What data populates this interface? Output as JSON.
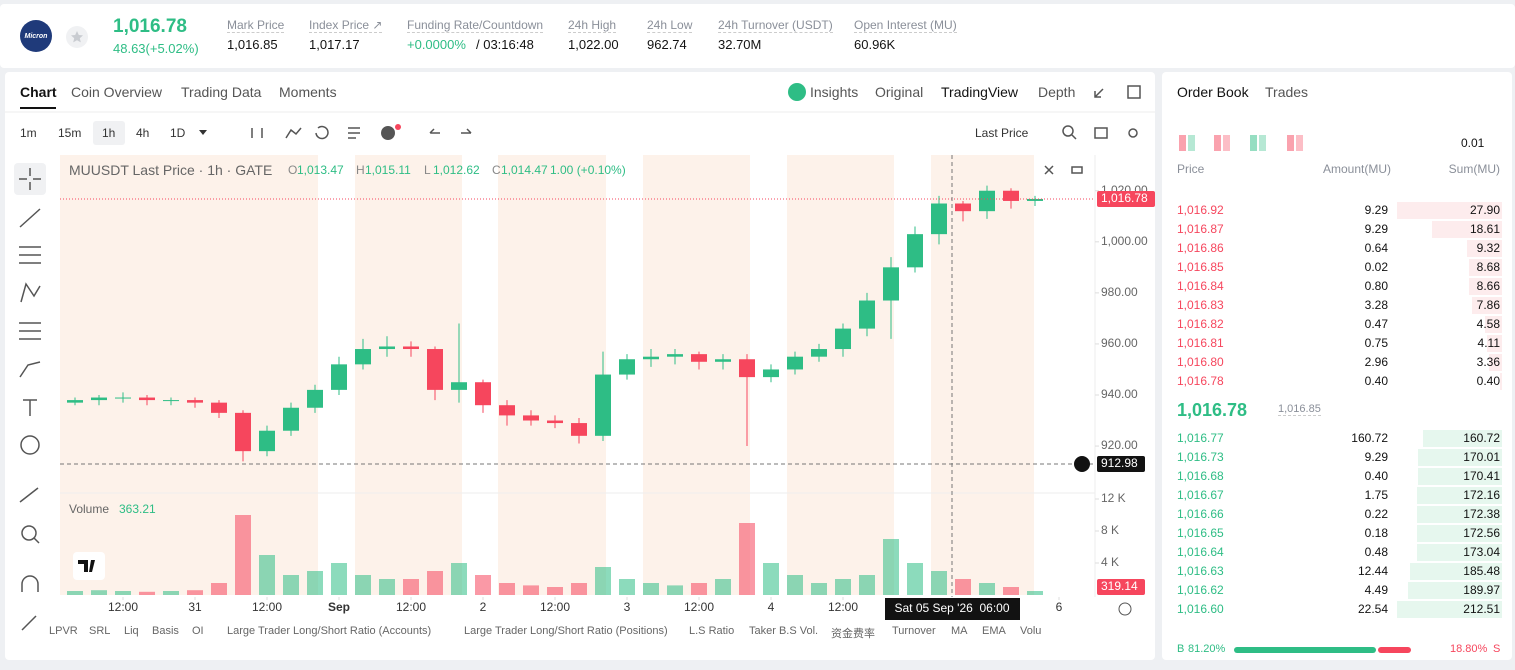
{
  "header": {
    "logo": "Micron",
    "price": "1,016.78",
    "change": "48.63(+5.02%)",
    "stats": [
      {
        "label": "Mark Price",
        "value": "1,016.85"
      },
      {
        "label": "Index Price ↗",
        "value": "1,017.17"
      },
      {
        "label": "Funding Rate/Countdown",
        "value": "+0.0000%",
        "value2": "/ 03:16:48"
      },
      {
        "label": "24h High",
        "value": "1,022.00"
      },
      {
        "label": "24h Low",
        "value": "962.74"
      },
      {
        "label": "24h Turnover (USDT)",
        "value": "32.70M"
      },
      {
        "label": "Open Interest (MU)",
        "value": "60.96K"
      }
    ]
  },
  "tabs": [
    "Chart",
    "Coin Overview",
    "Trading Data",
    "Moments"
  ],
  "view_tabs": [
    "Insights",
    "Original",
    "TradingView",
    "Depth"
  ],
  "intervals": [
    "1m",
    "15m",
    "1h",
    "4h",
    "1D"
  ],
  "price_source": "Last Price",
  "legend": {
    "symbol": "MUUSDT Last Price · 1h · GATE",
    "ohlc": [
      {
        "key": "O",
        "value": "1,013.47"
      },
      {
        "key": "H",
        "value": "1,015.11"
      },
      {
        "key": "L",
        "value": "1,012.62"
      },
      {
        "key": "C",
        "value": "1,014.47"
      }
    ],
    "change": "1.00 (+0.10%)"
  },
  "volume_legend": {
    "label": "Volume",
    "value": "363.21"
  },
  "price_labels": {
    "last": "1,016.78",
    "crosshair": "912.98",
    "crosshair_time": "Sat 05 Sep '26  06:00",
    "volume_last": "319.14"
  },
  "indicators": [
    "LPVR",
    "SRL",
    "Liq",
    "Basis",
    "OI",
    "Large Trader Long/Short Ratio (Accounts)",
    "Large Trader Long/Short Ratio (Positions)",
    "L.S Ratio",
    "Taker B.S Vol.",
    "资金费率",
    "Turnover",
    "MA",
    "EMA",
    "Volu"
  ],
  "chart_data": {
    "type": "candlestick",
    "x": [
      -8,
      -4,
      0,
      4,
      8,
      12,
      16,
      20,
      24,
      28,
      32,
      36,
      40,
      44,
      48,
      52,
      56,
      60,
      64,
      68,
      72,
      76,
      80,
      84,
      88,
      92,
      96,
      100,
      104,
      108,
      112,
      116,
      120,
      124,
      128,
      132,
      136,
      140,
      144,
      148,
      152
    ],
    "open": [
      937,
      938,
      939,
      939,
      938,
      938,
      937,
      933,
      918,
      926,
      935,
      942,
      952,
      958,
      959,
      958,
      942,
      945,
      936,
      932,
      930,
      929,
      924,
      948,
      954,
      955,
      956,
      953,
      954,
      947,
      950,
      955,
      958,
      966,
      977,
      990,
      1003,
      1015,
      1012,
      1020,
      1016
    ],
    "high": [
      939,
      940,
      941,
      940,
      939,
      939,
      938,
      934,
      928,
      937,
      944,
      955,
      962,
      963,
      961,
      959,
      968,
      946,
      938,
      934,
      932,
      931,
      957,
      956,
      958,
      958,
      957,
      956,
      956,
      952,
      957,
      960,
      968,
      980,
      994,
      1006,
      1018,
      1016,
      1022,
      1021,
      1018
    ],
    "low": [
      936,
      936,
      937,
      936,
      936,
      935,
      931,
      914,
      916,
      924,
      933,
      940,
      950,
      955,
      955,
      938,
      937,
      933,
      928,
      928,
      927,
      921,
      922,
      946,
      951,
      952,
      950,
      950,
      920,
      945,
      948,
      953,
      955,
      963,
      962,
      988,
      999,
      1008,
      1009,
      1013,
      1014
    ],
    "close": [
      938,
      939,
      939,
      938,
      938,
      937,
      933,
      918,
      926,
      935,
      942,
      952,
      958,
      959,
      958,
      942,
      945,
      936,
      932,
      930,
      929,
      924,
      948,
      954,
      955,
      956,
      953,
      954,
      947,
      950,
      955,
      958,
      966,
      977,
      990,
      1003,
      1015,
      1012,
      1020,
      1016,
      1016.78
    ],
    "volume": [
      0.5,
      0.6,
      0.5,
      0.4,
      0.5,
      0.6,
      1.5,
      10,
      5,
      2.5,
      3,
      4,
      2.5,
      2,
      2,
      3,
      4,
      2.5,
      1.5,
      1.2,
      1,
      1.5,
      3.5,
      2,
      1.5,
      1.2,
      1.5,
      2,
      9,
      4,
      2.5,
      1.5,
      2,
      2.5,
      7,
      4,
      3,
      2,
      1.5,
      1,
      0.5
    ],
    "up_color": "#2ebd85",
    "down_color": "#f6465d",
    "xlim": [
      -10.5,
      162
    ],
    "xticks": [
      {
        "value": 0,
        "label": "12:00"
      },
      {
        "value": 12,
        "label": "31"
      },
      {
        "value": 24,
        "label": "12:00"
      },
      {
        "value": 36,
        "label": "Sep"
      },
      {
        "value": 48,
        "label": "12:00"
      },
      {
        "value": 60,
        "label": "2"
      },
      {
        "value": 72,
        "label": "12:00"
      },
      {
        "value": 84,
        "label": "3"
      },
      {
        "value": 96,
        "label": "12:00"
      },
      {
        "value": 108,
        "label": "4"
      },
      {
        "value": 120,
        "label": "12:00"
      },
      {
        "value": 156,
        "label": "6"
      }
    ],
    "ylim": [
      902,
      1034
    ],
    "yticks": [
      {
        "value": 920,
        "label": "920.00"
      },
      {
        "value": 940,
        "label": "940.00"
      },
      {
        "value": 960,
        "label": "960.00"
      },
      {
        "value": 980,
        "label": "980.00"
      },
      {
        "value": 1000,
        "label": "1,000.00"
      },
      {
        "value": 1020,
        "label": "1,020.00"
      }
    ],
    "y2lim": [
      0,
      12.5
    ],
    "y2ticks": [
      {
        "value": 4,
        "label": "4 K"
      },
      {
        "value": 8,
        "label": "8 K"
      },
      {
        "value": 12,
        "label": "12 K"
      }
    ]
  },
  "order_book": {
    "tabs": [
      "Order Book",
      "Trades"
    ],
    "precision": "0.01",
    "columns": [
      "Price",
      "Amount(MU)",
      "Sum(MU)"
    ],
    "asks": [
      [
        "1,016.92",
        "9.29",
        "27.90"
      ],
      [
        "1,016.87",
        "9.29",
        "18.61"
      ],
      [
        "1,016.86",
        "0.64",
        "9.32"
      ],
      [
        "1,016.85",
        "0.02",
        "8.68"
      ],
      [
        "1,016.84",
        "0.80",
        "8.66"
      ],
      [
        "1,016.83",
        "3.28",
        "7.86"
      ],
      [
        "1,016.82",
        "0.47",
        "4.58"
      ],
      [
        "1,016.81",
        "0.75",
        "4.11"
      ],
      [
        "1,016.80",
        "2.96",
        "3.36"
      ],
      [
        "1,016.78",
        "0.40",
        "0.40"
      ]
    ],
    "last_price": "1,016.78",
    "mark_price": "1,016.85",
    "bids": [
      [
        "1,016.77",
        "160.72",
        "160.72"
      ],
      [
        "1,016.73",
        "9.29",
        "170.01"
      ],
      [
        "1,016.68",
        "0.40",
        "170.41"
      ],
      [
        "1,016.67",
        "1.75",
        "172.16"
      ],
      [
        "1,016.66",
        "0.22",
        "172.38"
      ],
      [
        "1,016.65",
        "0.18",
        "172.56"
      ],
      [
        "1,016.64",
        "0.48",
        "173.04"
      ],
      [
        "1,016.63",
        "12.44",
        "185.48"
      ],
      [
        "1,016.62",
        "4.49",
        "189.97"
      ],
      [
        "1,016.60",
        "22.54",
        "212.51"
      ]
    ],
    "buy": "B",
    "sell": "S",
    "buy_ratio": {
      "value": 81.2,
      "label": "81.20%"
    },
    "sell_ratio": {
      "value": 18.8,
      "label": "18.80%"
    }
  }
}
